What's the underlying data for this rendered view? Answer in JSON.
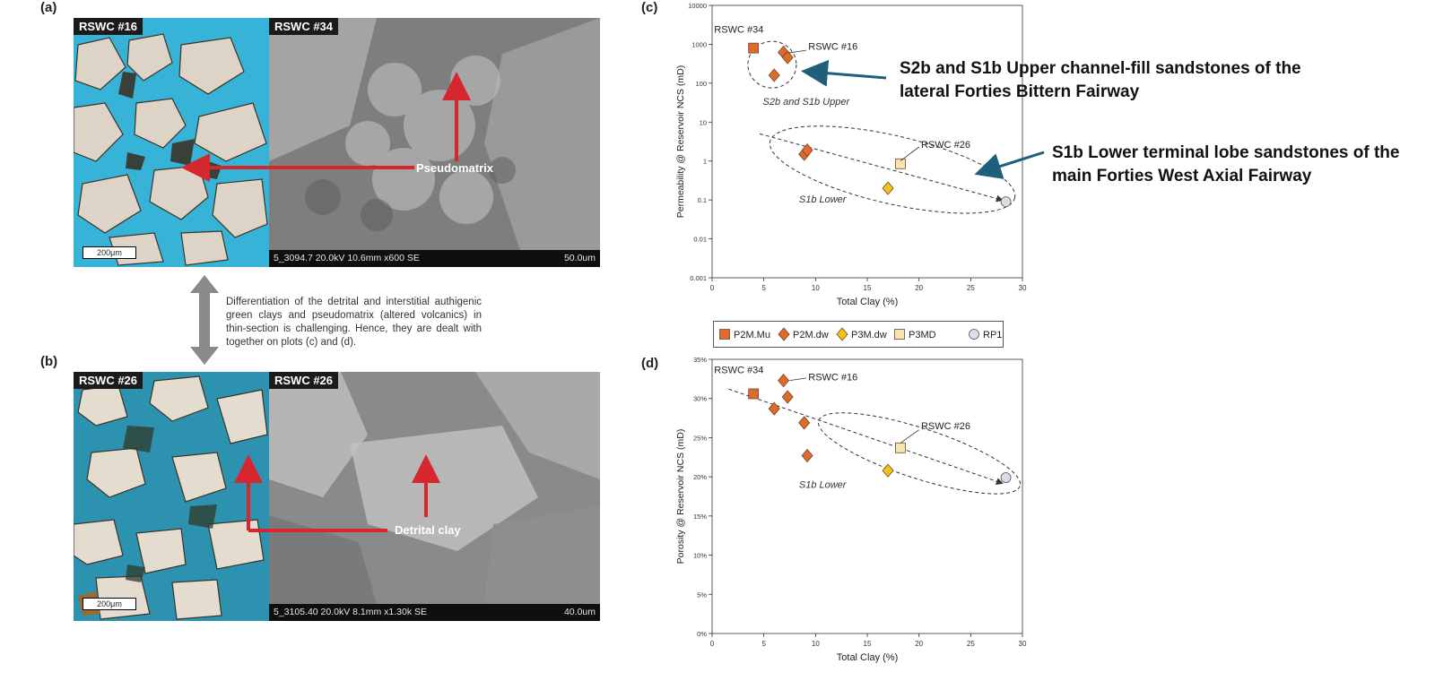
{
  "panel_letters": {
    "a": "(a)",
    "b": "(b)",
    "c": "(c)",
    "d": "(d)"
  },
  "panel_a": {
    "left_tag": "RSWC #16",
    "right_tag": "RSWC #34",
    "scale_label": "200μm",
    "sem_caption": "5_3094.7 20.0kV 10.6mm x600 SE",
    "sem_scale": "50.0um",
    "arrow_label": "Pseudomatrix",
    "colors": {
      "stain": "#37b3d8",
      "grain": "#ddd3c6",
      "sem": "#8d8d8d",
      "arrow": "#d6262e"
    }
  },
  "panel_b": {
    "left_tag": "RSWC #26",
    "right_tag": "RSWC #26",
    "scale_label": "200μm",
    "sem_caption": "5_3105.40 20.0kV 8.1mm x1.30k SE",
    "sem_scale": "40.0um",
    "arrow_label": "Detrital clay"
  },
  "middle_note": "Differentiation of the detrital and interstitial authigenic green clays and pseudomatrix (altered volcanics) in thin-section is challenging. Hence, they are dealt with together on plots (c) and (d).",
  "callouts": {
    "upper": "S2b and S1b Upper channel-fill sandstones of the lateral Forties Bittern Fairway",
    "lower": "S1b Lower terminal lobe sandstones of the main Forties West Axial Fairway",
    "arrow_color": "#1f5f7a"
  },
  "legend": [
    {
      "name": "P2M.Mu",
      "shape": "square",
      "color": "#e06a2c"
    },
    {
      "name": "P2M.dw",
      "shape": "diamond",
      "color": "#e06a2c"
    },
    {
      "name": "P3M.dw",
      "shape": "diamond",
      "color": "#f2c21b"
    },
    {
      "name": "P3MD",
      "shape": "square",
      "color": "#f8e4b0"
    },
    {
      "name": "RP1",
      "shape": "circle",
      "color": "#dcdde8"
    }
  ],
  "chart_data": [
    {
      "type": "scatter",
      "panel": "(c)",
      "xlabel": "Total Clay (%)",
      "ylabel": "Permeability @ Reservoir NCS (mD)",
      "xlim": [
        0,
        30
      ],
      "ylim": [
        0.001,
        10000
      ],
      "yscale": "log",
      "xticks": [
        0,
        5,
        10,
        15,
        20,
        25,
        30
      ],
      "yticks": [
        "0.001",
        "0.01",
        "0.1",
        "1",
        "10",
        "100",
        "1000",
        "10000"
      ],
      "grid": false,
      "points": [
        {
          "x": 4.0,
          "y": 800,
          "series": "P2M.Mu"
        },
        {
          "x": 6.0,
          "y": 160,
          "series": "P2M.dw"
        },
        {
          "x": 6.9,
          "y": 620,
          "series": "P2M.dw"
        },
        {
          "x": 7.3,
          "y": 460,
          "series": "P2M.dw"
        },
        {
          "x": 8.9,
          "y": 1.5,
          "series": "P2M.dw"
        },
        {
          "x": 9.2,
          "y": 1.9,
          "series": "P2M.dw"
        },
        {
          "x": 17.0,
          "y": 0.2,
          "series": "P3M.dw"
        },
        {
          "x": 18.2,
          "y": 0.85,
          "series": "P3MD"
        },
        {
          "x": 28.4,
          "y": 0.09,
          "series": "RP1"
        }
      ],
      "annotations": {
        "pt34": "RSWC #34",
        "pt16": "RSWC #16",
        "pt26": "RSWC #26",
        "upper_group": "S2b and S1b Upper",
        "lower_group": "S1b Lower"
      }
    },
    {
      "type": "scatter",
      "panel": "(d)",
      "xlabel": "Total Clay (%)",
      "ylabel": "Porosity @ Reservoir NCS (mD)",
      "xlim": [
        0,
        30
      ],
      "ylim": [
        0,
        35
      ],
      "xticks": [
        0,
        5,
        10,
        15,
        20,
        25,
        30
      ],
      "yticks": [
        "0%",
        "5%",
        "10%",
        "15%",
        "20%",
        "25%",
        "30%",
        "35%"
      ],
      "grid": false,
      "points": [
        {
          "x": 4.0,
          "y": 30.6,
          "series": "P2M.Mu"
        },
        {
          "x": 6.0,
          "y": 28.7,
          "series": "P2M.dw"
        },
        {
          "x": 6.9,
          "y": 32.3,
          "series": "P2M.dw"
        },
        {
          "x": 7.3,
          "y": 30.2,
          "series": "P2M.dw"
        },
        {
          "x": 8.9,
          "y": 26.9,
          "series": "P2M.dw"
        },
        {
          "x": 9.2,
          "y": 22.7,
          "series": "P2M.dw"
        },
        {
          "x": 17.0,
          "y": 20.8,
          "series": "P3M.dw"
        },
        {
          "x": 18.2,
          "y": 23.7,
          "series": "P3MD"
        },
        {
          "x": 28.4,
          "y": 19.9,
          "series": "RP1"
        }
      ],
      "annotations": {
        "pt34": "RSWC #34",
        "pt16": "RSWC #16",
        "pt26": "RSWC #26",
        "lower_group": "S1b Lower"
      }
    }
  ]
}
